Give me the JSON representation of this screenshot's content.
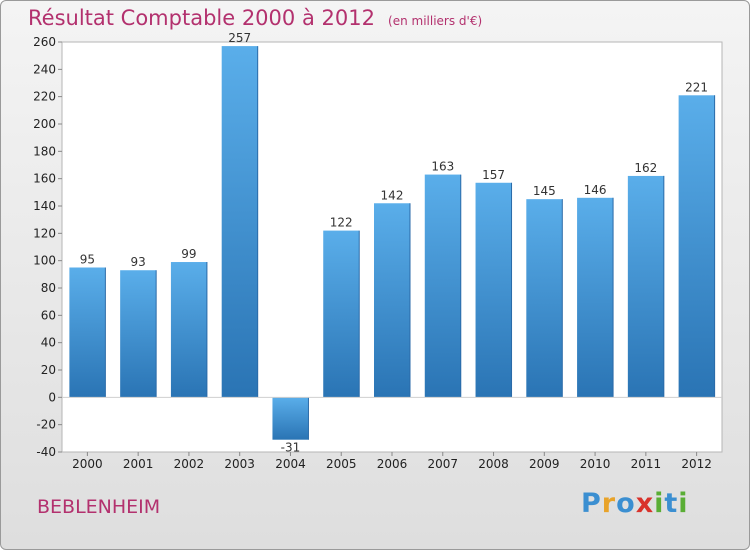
{
  "header": {
    "title": "Résultat Comptable 2000 à 2012",
    "subtitle": "(en milliers d'€)"
  },
  "footer": {
    "city": "BEBLENHEIM",
    "brand": "Proxiti",
    "brand_letters": [
      {
        "ch": "P",
        "color": "#3b8fd1"
      },
      {
        "ch": "r",
        "color": "#e8a32a"
      },
      {
        "ch": "o",
        "color": "#3b8fd1"
      },
      {
        "ch": "x",
        "color": "#d9322b"
      },
      {
        "ch": "i",
        "color": "#5aae35"
      },
      {
        "ch": "t",
        "color": "#3b8fd1"
      },
      {
        "ch": "i",
        "color": "#5aae35"
      }
    ]
  },
  "chart_data": {
    "type": "bar",
    "title": "Résultat Comptable 2000 à 2012",
    "subtitle": "(en milliers d'€)",
    "categories": [
      "2000",
      "2001",
      "2002",
      "2003",
      "2004",
      "2005",
      "2006",
      "2007",
      "2008",
      "2009",
      "2010",
      "2011",
      "2012"
    ],
    "values": [
      95,
      93,
      99,
      257,
      -31,
      122,
      142,
      163,
      157,
      145,
      146,
      162,
      221
    ],
    "ylim": [
      -40,
      260
    ],
    "yticks": [
      -40,
      -20,
      0,
      20,
      40,
      60,
      80,
      100,
      120,
      140,
      160,
      180,
      200,
      220,
      240,
      260
    ],
    "grid": false,
    "bar_color": "#3f93d9"
  }
}
